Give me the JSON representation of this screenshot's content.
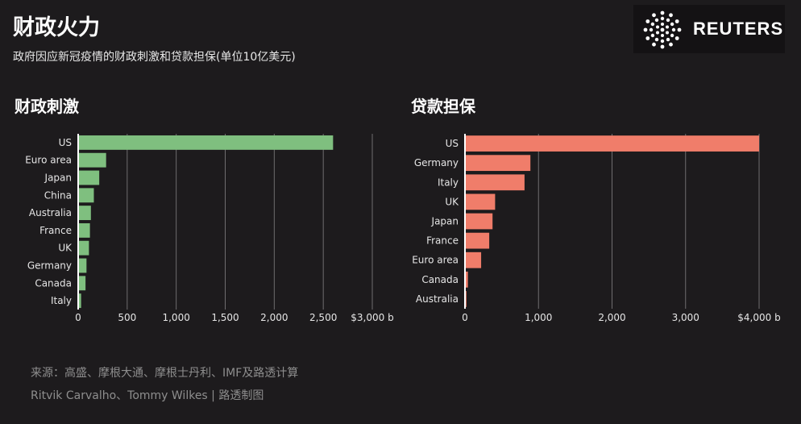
{
  "header": {
    "title": "财政火力",
    "subtitle": "政府因应新冠疫情的财政刺激和贷款担保(单位10亿美元)",
    "logo_text": "REUTERS"
  },
  "footer": {
    "source": "来源：高盛、摩根大通、摩根士丹利、IMF及路透计算",
    "credit": "Ritvik Carvalho、Tommy Wilkes | 路透制图"
  },
  "chart_data": [
    {
      "type": "bar",
      "orientation": "horizontal",
      "title": "财政刺激",
      "color": "#7fbf7f",
      "categories": [
        "US",
        "Euro area",
        "Japan",
        "China",
        "Australia",
        "France",
        "UK",
        "Germany",
        "Canada",
        "Italy"
      ],
      "values": [
        2600,
        285,
        215,
        160,
        130,
        120,
        110,
        85,
        75,
        30
      ],
      "xlim": [
        0,
        3000
      ],
      "ticks": [
        0,
        500,
        1000,
        1500,
        2000,
        2500,
        3000
      ],
      "tick_labels": [
        "0",
        "500",
        "1,000",
        "1,500",
        "2,000",
        "2,500",
        "$3,000 b"
      ],
      "grid": true
    },
    {
      "type": "bar",
      "orientation": "horizontal",
      "title": "贷款担保",
      "color": "#f07d6a",
      "categories": [
        "US",
        "Germany",
        "Italy",
        "UK",
        "Japan",
        "France",
        "Euro area",
        "Canada",
        "Australia"
      ],
      "values": [
        4000,
        890,
        810,
        410,
        375,
        330,
        220,
        40,
        20
      ],
      "xlim": [
        0,
        4000
      ],
      "ticks": [
        0,
        1000,
        2000,
        3000,
        4000
      ],
      "tick_labels": [
        "0",
        "1,000",
        "2,000",
        "3,000",
        "$4,000 b"
      ],
      "grid": true
    }
  ]
}
